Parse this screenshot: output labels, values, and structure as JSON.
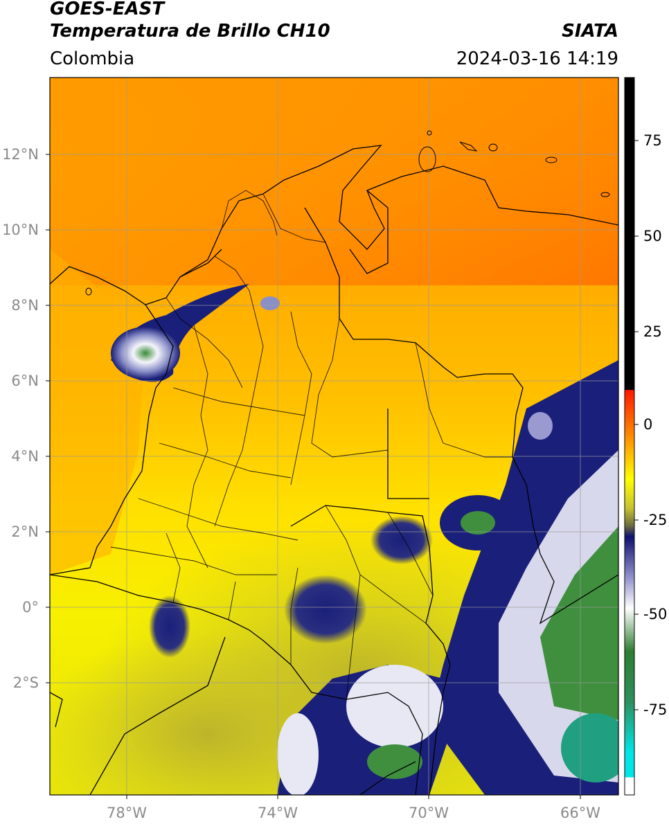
{
  "header": {
    "title_line1": "GOES-EAST",
    "title_line2": "Temperatura de Brillo CH10",
    "organization": "SIATA",
    "region": "Colombia",
    "timestamp": "2024-03-16 14:19"
  },
  "map": {
    "latitude_labels": [
      "12°N",
      "10°N",
      "8°N",
      "6°N",
      "4°N",
      "2°N",
      "0°",
      "2°S"
    ],
    "longitude_labels": [
      "78°W",
      "74°W",
      "70°W",
      "66°W"
    ],
    "layers": [
      "country-borders",
      "department-borders",
      "coastline",
      "graticule"
    ],
    "colors": {
      "warm_sea": "#ff9a00",
      "warm_land": "#ffc800",
      "mid": "#f3ee00",
      "cool_olive": "#c9c22c",
      "cold_navy": "#1a1f7a",
      "cold_white": "#f2f2f8",
      "cold_green": "#3f8f3f"
    }
  },
  "colorbar": {
    "tick_labels": [
      "75",
      "50",
      "25",
      "0",
      "-25",
      "-50",
      "-75"
    ],
    "colors": {
      "hot": "#000000",
      "zero": "#ff2a00",
      "yellow": "#ffff00",
      "olive": "#8e8e30",
      "navy": "#101070",
      "white": "#ffffff",
      "green": "#2e7d32",
      "cyan": "#00e5e5"
    }
  }
}
